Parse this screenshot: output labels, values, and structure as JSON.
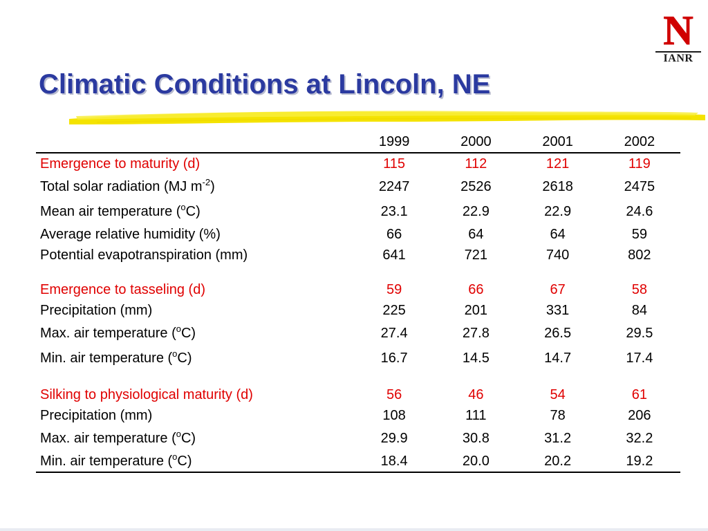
{
  "logo": {
    "letter": "N",
    "text": "IANR",
    "color": "#d00000"
  },
  "title": "Climatic Conditions at Lincoln, NE",
  "colors": {
    "title": "#2b3aa0",
    "highlight": "#e00000",
    "stroke": "#f4e300"
  },
  "table": {
    "years": [
      "1999",
      "2000",
      "2001",
      "2002"
    ],
    "rows": [
      {
        "label": "Emergence to maturity (d)",
        "values": [
          "115",
          "112",
          "121",
          "119"
        ]
      },
      {
        "label": "Total solar radiation (MJ m",
        "sup": "-2",
        "suffix": ")",
        "values": [
          "2247",
          "2526",
          "2618",
          "2475"
        ]
      },
      {
        "label": "Mean air temperature (",
        "sup": "o",
        "suffix": "C)",
        "values": [
          "23.1",
          "22.9",
          "22.9",
          "24.6"
        ]
      },
      {
        "label": "Average relative humidity (%)",
        "values": [
          "66",
          "64",
          "64",
          "59"
        ]
      },
      {
        "label": "Potential evapotranspiration (mm)",
        "values": [
          "641",
          "721",
          "740",
          "802"
        ]
      },
      {
        "label": "Emergence to tasseling (d)",
        "values": [
          "59",
          "66",
          "67",
          "58"
        ]
      },
      {
        "label": "Precipitation (mm)",
        "values": [
          "225",
          "201",
          "331",
          "84"
        ]
      },
      {
        "label": "Max. air temperature (",
        "sup": "o",
        "suffix": "C)",
        "values": [
          "27.4",
          "27.8",
          "26.5",
          "29.5"
        ]
      },
      {
        "label": "Min. air temperature (",
        "sup": "o",
        "suffix": "C)",
        "values": [
          "16.7",
          "14.5",
          "14.7",
          "17.4"
        ]
      },
      {
        "label": "Silking to physiological maturity (d)",
        "values": [
          "56",
          "46",
          "54",
          "61"
        ]
      },
      {
        "label": "Precipitation (mm)",
        "values": [
          "108",
          "111",
          "78",
          "206"
        ]
      },
      {
        "label": "Max. air temperature (",
        "sup": "o",
        "suffix": "C)",
        "values": [
          "29.9",
          "30.8",
          "31.2",
          "32.2"
        ]
      },
      {
        "label": "Min. air temperature (",
        "sup": "o",
        "suffix": "C)",
        "values": [
          "18.4",
          "20.0",
          "20.2",
          "19.2"
        ]
      }
    ]
  }
}
